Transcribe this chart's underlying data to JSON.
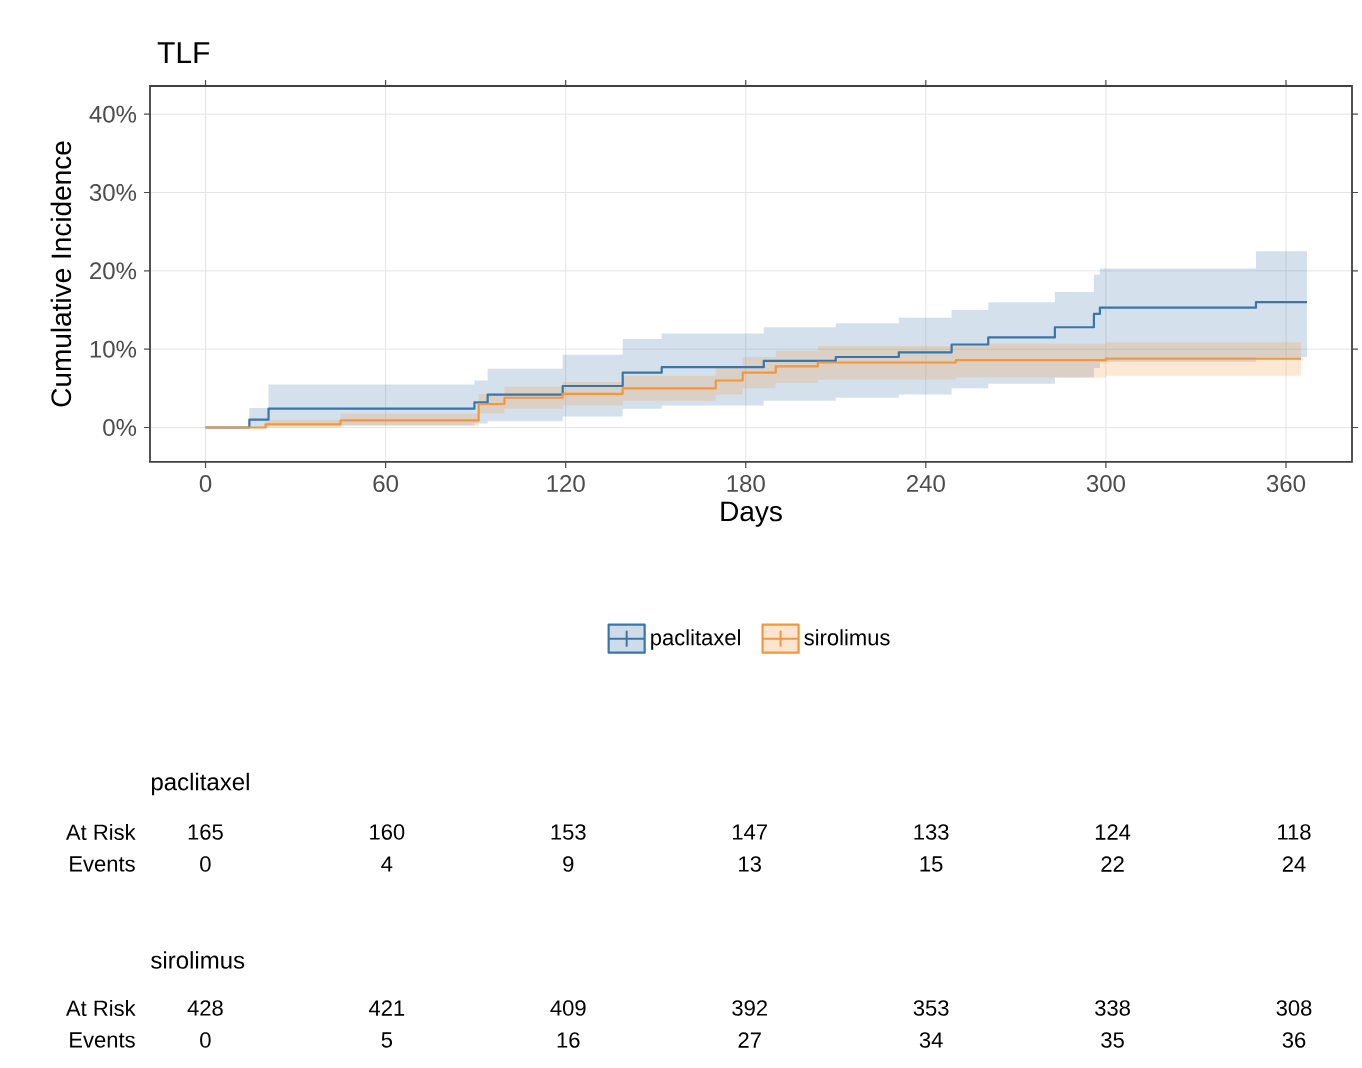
{
  "chart_data": [
    {
      "type": "step",
      "title": "TLF",
      "xlabel": "Days",
      "ylabel": "Cumulative Incidence",
      "xlim": [
        -18.5,
        382
      ],
      "ylim": [
        -4.4,
        43.6
      ],
      "xticks": [
        0,
        60,
        120,
        180,
        240,
        300,
        360
      ],
      "yticks": [
        {
          "value": 0,
          "label": "0%"
        },
        {
          "value": 10,
          "label": "10%"
        },
        {
          "value": 20,
          "label": "20%"
        },
        {
          "value": 30,
          "label": "30%"
        },
        {
          "value": 40,
          "label": "40%"
        }
      ],
      "grid": true,
      "legend": "bottom",
      "series": [
        {
          "name": "paclitaxel",
          "color": "#3a75a8",
          "x": [
            0,
            14.6,
            21,
            89.6,
            94,
            119,
            139,
            152,
            186,
            210,
            231,
            248.6,
            260.8,
            283,
            296,
            298,
            350,
            367
          ],
          "values": [
            0,
            1.0,
            2.4,
            3.2,
            4.2,
            5.3,
            7.0,
            7.7,
            8.5,
            9.0,
            9.6,
            10.6,
            11.5,
            12.8,
            14.5,
            15.3,
            16.0,
            16.0
          ],
          "lower": [
            0,
            0,
            0.3,
            0.5,
            0.8,
            1.4,
            2.4,
            2.8,
            3.4,
            3.8,
            4.2,
            5.0,
            5.6,
            6.4,
            7.6,
            8.4,
            9.0,
            9.0
          ],
          "upper": [
            0,
            2.5,
            5.5,
            6.0,
            7.5,
            9.3,
            11.3,
            12.0,
            12.8,
            13.3,
            14.0,
            15.0,
            16.0,
            17.3,
            19.5,
            20.3,
            22.5,
            22.5
          ]
        },
        {
          "name": "sirolimus",
          "color": "#f5963c",
          "x": [
            0,
            20,
            45,
            91,
            99.6,
            119,
            139,
            170,
            179,
            190,
            204,
            250,
            300,
            365
          ],
          "values": [
            0,
            0.4,
            0.9,
            3.0,
            3.8,
            4.3,
            5.0,
            6.0,
            7.0,
            7.8,
            8.3,
            8.6,
            8.8,
            8.8
          ],
          "lower": [
            0,
            0,
            0.2,
            1.8,
            2.4,
            2.8,
            3.4,
            4.2,
            5.0,
            5.7,
            6.1,
            6.4,
            6.6,
            6.6
          ],
          "upper": [
            0,
            1.0,
            1.8,
            4.3,
            5.2,
            5.8,
            6.6,
            7.8,
            9.0,
            9.8,
            10.4,
            10.7,
            10.9,
            10.9
          ]
        }
      ]
    },
    {
      "type": "other",
      "title": "paclitaxel",
      "y_categories": [
        "At Risk",
        "Events"
      ],
      "annotations": [
        "165",
        "160",
        "153",
        "147",
        "133",
        "124",
        "118",
        "0",
        "4",
        "9",
        "13",
        "15",
        "22",
        "24"
      ]
    },
    {
      "type": "other",
      "title": "sirolimus",
      "y_categories": [
        "At Risk",
        "Events"
      ],
      "annotations": [
        "428",
        "421",
        "409",
        "392",
        "353",
        "338",
        "308",
        "0",
        "5",
        "16",
        "27",
        "34",
        "35",
        "36"
      ]
    }
  ]
}
